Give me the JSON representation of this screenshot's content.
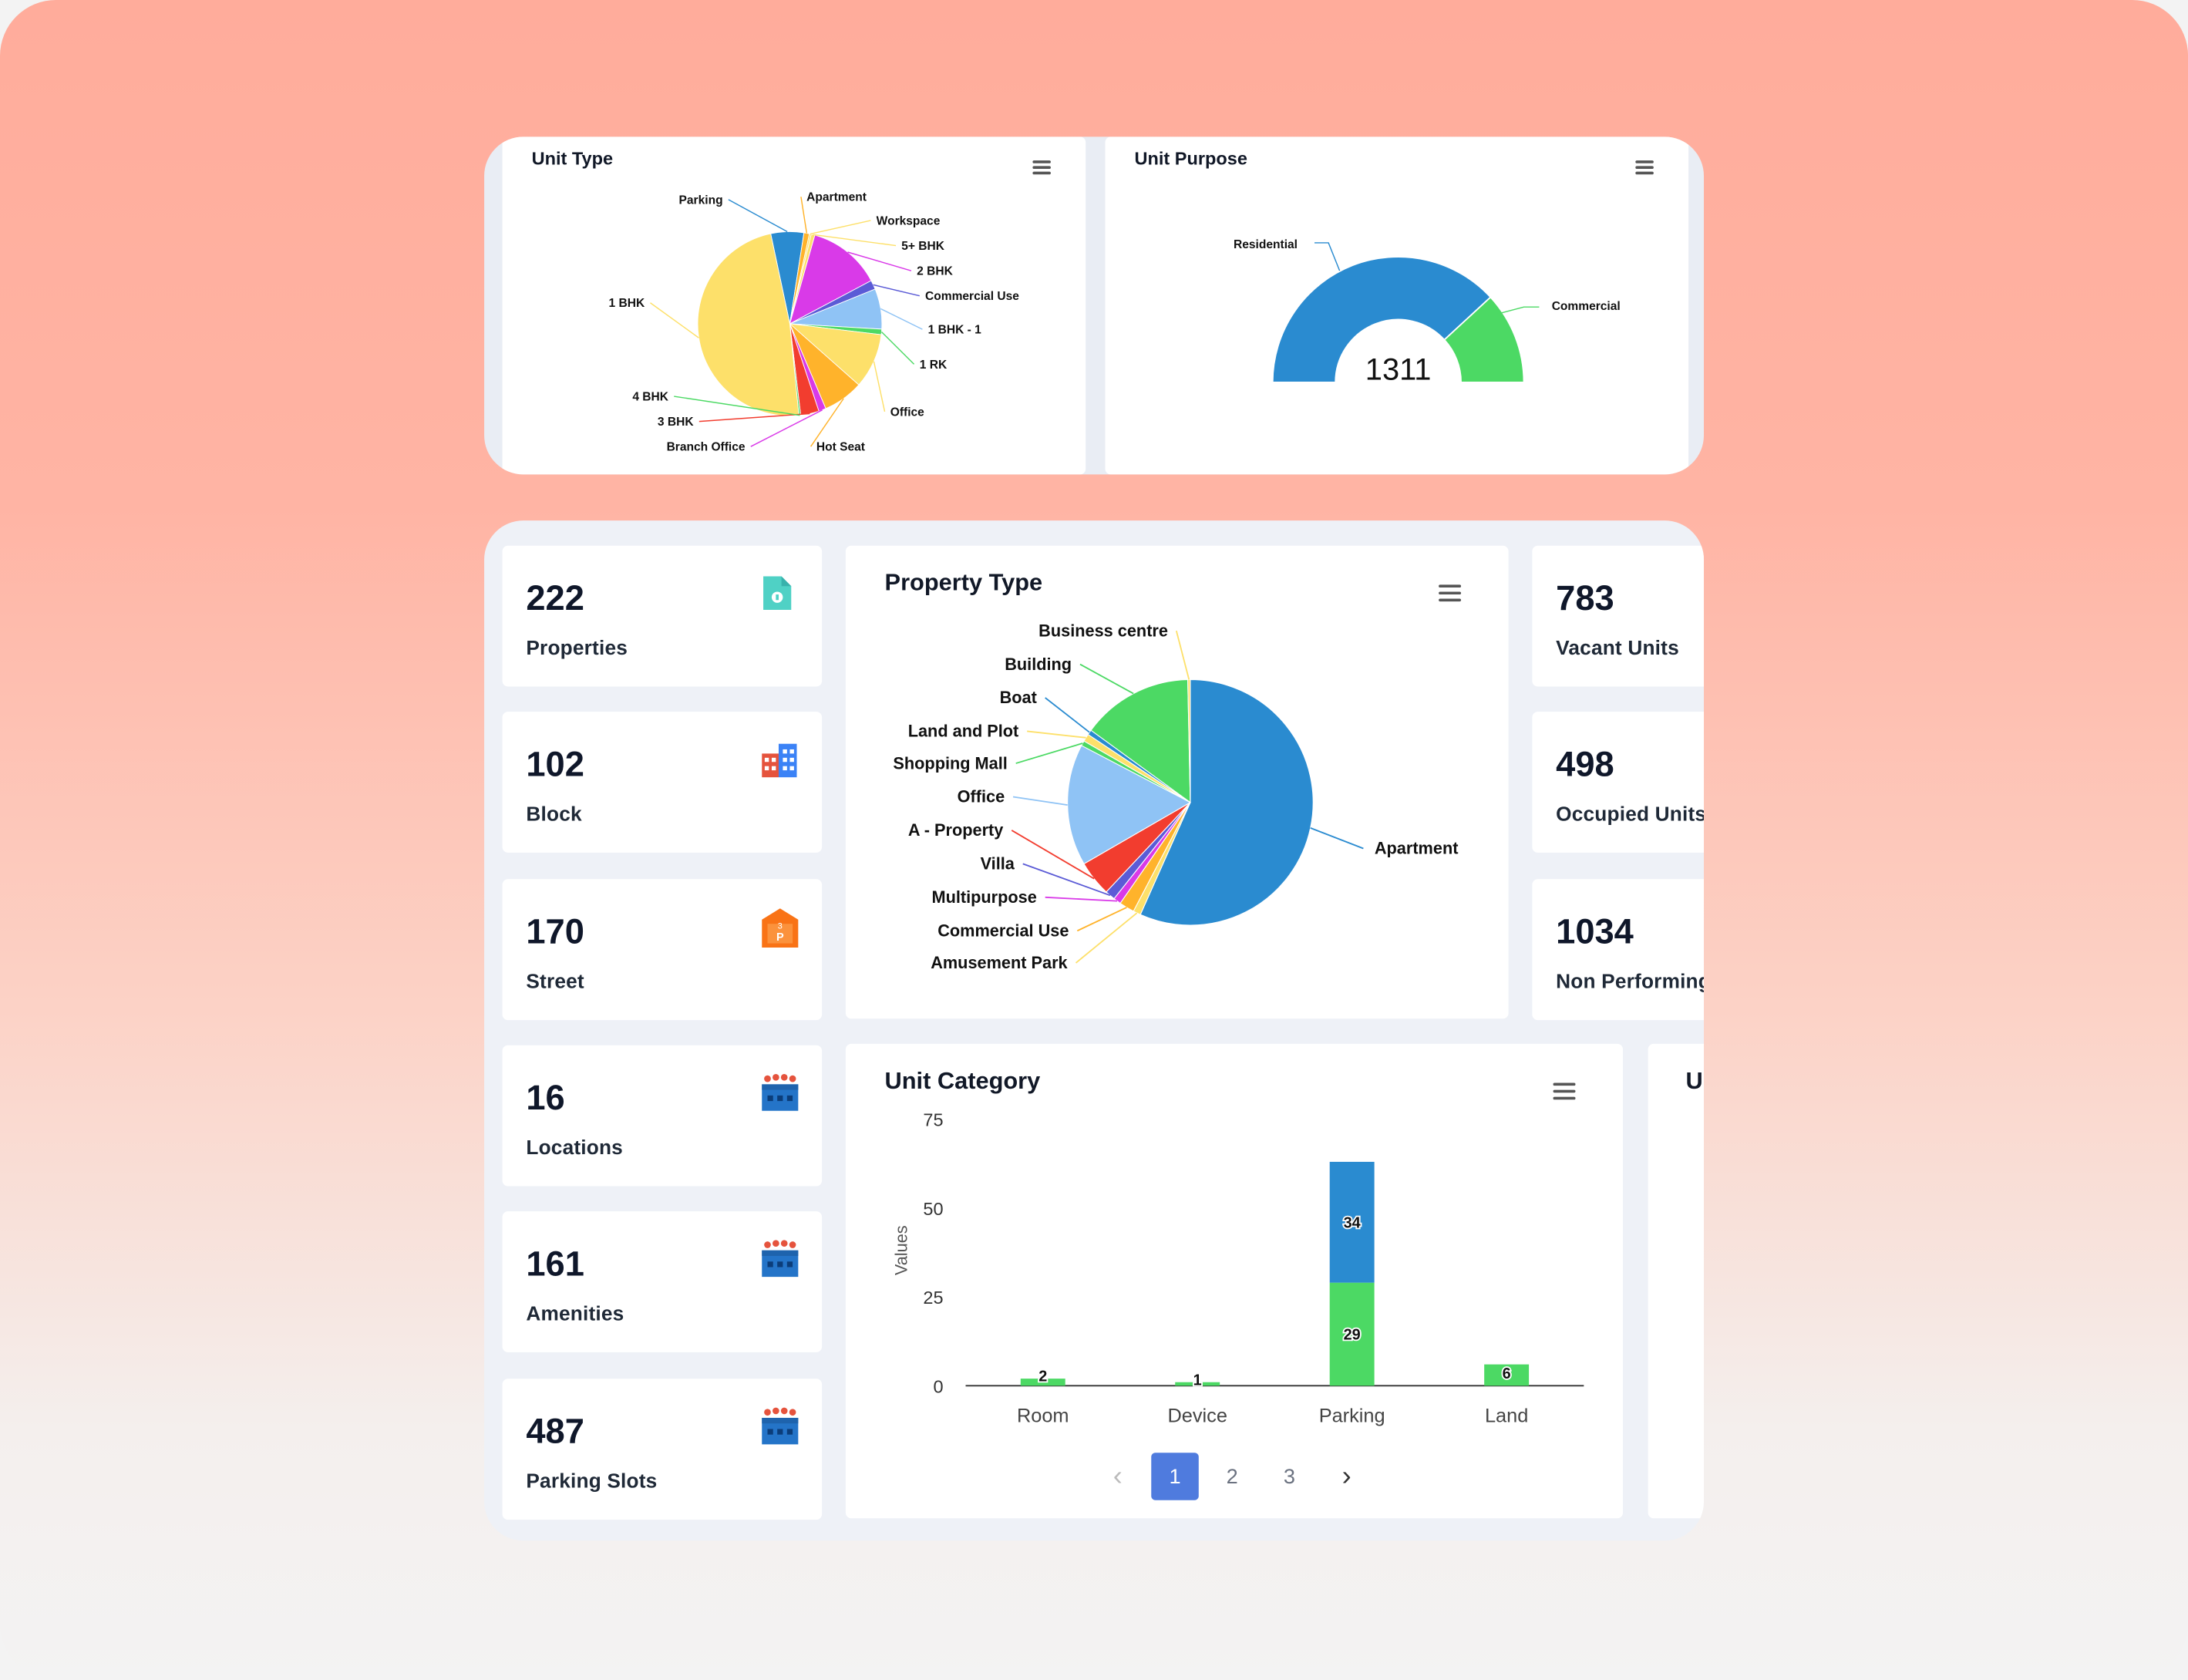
{
  "unit_type": {
    "title": "Unit Type",
    "labels": [
      "Parking",
      "Apartment",
      "Workspace",
      "5+ BHK",
      "2 BHK",
      "Commercial Use",
      "1 BHK - 1",
      "1 RK",
      "Office",
      "Hot Seat",
      "Branch Office",
      "3 BHK",
      "4 BHK",
      "1 BHK"
    ]
  },
  "unit_purpose": {
    "title": "Unit Purpose",
    "total": "1311",
    "labels": [
      "Residential",
      "Commercial"
    ]
  },
  "stats_left": [
    {
      "value": "222",
      "label": "Properties",
      "icon": "file-icon"
    },
    {
      "value": "102",
      "label": "Block",
      "icon": "buildings-icon"
    },
    {
      "value": "170",
      "label": "Street",
      "icon": "parking-building-icon"
    },
    {
      "value": "16",
      "label": "Locations",
      "icon": "factory-icon"
    },
    {
      "value": "161",
      "label": "Amenities",
      "icon": "factory-icon"
    },
    {
      "value": "487",
      "label": "Parking Slots",
      "icon": "factory-icon"
    }
  ],
  "stats_right": [
    {
      "value": "783",
      "label": "Vacant Units"
    },
    {
      "value": "498",
      "label": "Occupied Units"
    },
    {
      "value": "1034",
      "label": "Non Performing"
    }
  ],
  "property_type": {
    "title": "Property Type",
    "labels": [
      "Business centre",
      "Building",
      "Boat",
      "Land and Plot",
      "Shopping Mall",
      "Office",
      "A - Property",
      "Villa",
      "Multipurpose",
      "Commercial Use",
      "Amusement Park",
      "Apartment"
    ]
  },
  "unit_category": {
    "title": "Unit Category",
    "ylabel": "Values",
    "yticks": [
      "75",
      "50",
      "25",
      "0"
    ],
    "pagination": {
      "prev": "‹",
      "pages": [
        "1",
        "2",
        "3"
      ],
      "next": "›",
      "current": "1"
    }
  },
  "partial_card": {
    "title_fragment": "U"
  },
  "colors": {
    "blue": "#2a8bd0",
    "green": "#4cd964",
    "lightblue": "#8fc3f5",
    "yellow": "#fde06a",
    "magenta": "#d93ae8",
    "red": "#f23d2f",
    "orange": "#ffb32b",
    "accent": "#4f7bde"
  },
  "chart_data": [
    {
      "type": "bar",
      "title": "Unit Category",
      "ylabel": "Values",
      "ylim": [
        0,
        75
      ],
      "categories": [
        "Room",
        "Device",
        "Parking",
        "Land"
      ],
      "series": [
        {
          "values": [
            2,
            1,
            29,
            6
          ]
        },
        {
          "values": [
            0,
            0,
            34,
            0
          ]
        }
      ],
      "data_labels": [
        "2",
        "1",
        "29",
        "6",
        "34"
      ]
    },
    {
      "type": "pie",
      "title": "Unit Type",
      "labels": [
        "Parking",
        "Apartment",
        "Workspace",
        "5+ BHK",
        "2 BHK",
        "Commercial Use",
        "1 BHK - 1",
        "1 RK",
        "Office",
        "Hot Seat",
        "Branch Office",
        "3 BHK",
        "4 BHK",
        "1 BHK"
      ],
      "values": [
        18,
        3,
        1,
        2,
        40,
        5,
        22,
        3,
        30,
        22,
        4,
        10,
        1,
        150
      ]
    },
    {
      "type": "pie",
      "title": "Property Type",
      "labels": [
        "Apartment",
        "Amusement Park",
        "Commercial Use",
        "Multipurpose",
        "Villa",
        "A - Property",
        "Office",
        "Shopping Mall",
        "Land and Plot",
        "Boat",
        "Building",
        "Business centre"
      ],
      "values": [
        170,
        3,
        6,
        3,
        4,
        14,
        48,
        2,
        3,
        2,
        44,
        1
      ]
    },
    {
      "type": "pie",
      "title": "Unit Purpose",
      "labels": [
        "Residential",
        "Commercial"
      ],
      "values": [
        1000,
        311
      ],
      "total_label": "1311"
    }
  ]
}
